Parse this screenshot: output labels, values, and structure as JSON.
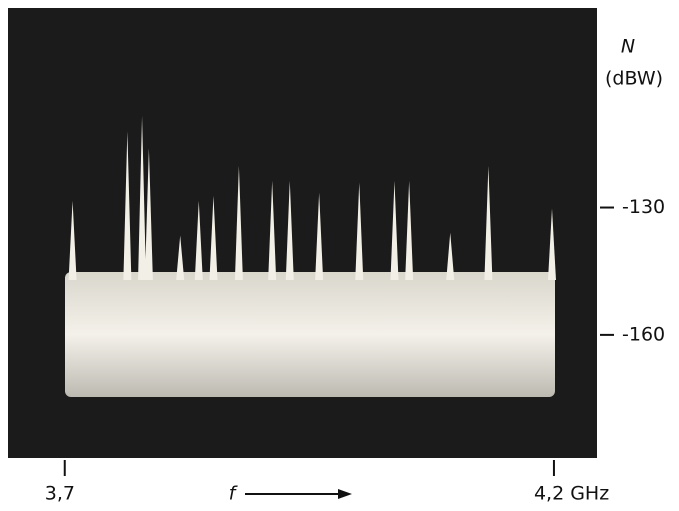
{
  "chart_data": {
    "type": "spectrum",
    "y_label": "N",
    "y_unit": "(dBW)",
    "x_label": "f",
    "x": [
      3.708,
      3.764,
      3.779,
      3.786,
      3.818,
      3.837,
      3.852,
      3.878,
      3.912,
      3.93,
      3.96,
      4.001,
      4.037,
      4.052,
      4.094,
      4.133,
      4.198
    ],
    "values": [
      -128.4,
      -112,
      -108.4,
      -116,
      -136.6,
      -128.4,
      -127.2,
      -120.2,
      -123.7,
      -123.7,
      -126.5,
      -124.1,
      -123.7,
      -123.7,
      -135.9,
      -120.2,
      -130.2
    ],
    "color": "#f2efe6",
    "xlim": [
      3.642,
      4.244
    ],
    "ylim": [
      -189,
      -83
    ],
    "xticks": [
      {
        "value": 3.7,
        "label": "3,7"
      },
      {
        "value": 4.2,
        "label": "4,2 GHz"
      }
    ],
    "yticks": [
      -130,
      -160
    ]
  }
}
